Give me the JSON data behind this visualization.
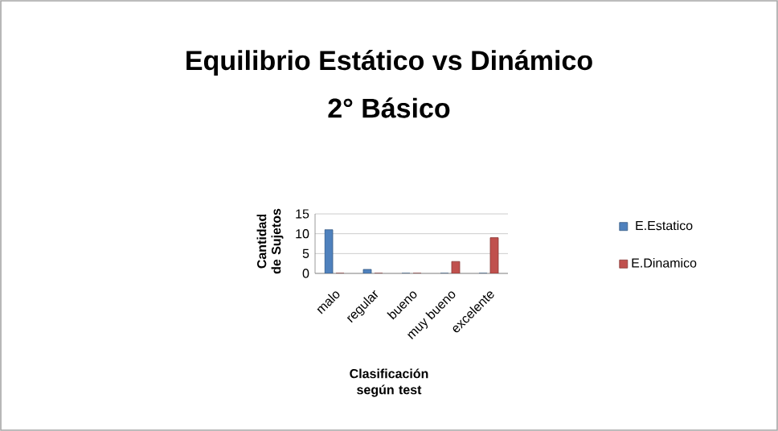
{
  "chart_data": {
    "type": "bar",
    "title": "Equilibrio Estático vs Dinámico",
    "subtitle": "2° Básico",
    "xlabel": "Clasificación según test",
    "ylabel": "Cantidad de Sujetos",
    "categories": [
      "malo",
      "regular",
      "bueno",
      "muy bueno",
      "excelente"
    ],
    "series": [
      {
        "name": "E.Estatico",
        "color": "#4f81bd",
        "values": [
          11,
          1,
          0,
          0,
          0
        ]
      },
      {
        "name": "E.Dinamico",
        "color": "#c0504d",
        "values": [
          0,
          0,
          0,
          3,
          9
        ]
      }
    ],
    "ylim": [
      0,
      15
    ],
    "yticks": [
      0,
      5,
      10,
      15
    ],
    "grid": "y",
    "legend": "right"
  }
}
